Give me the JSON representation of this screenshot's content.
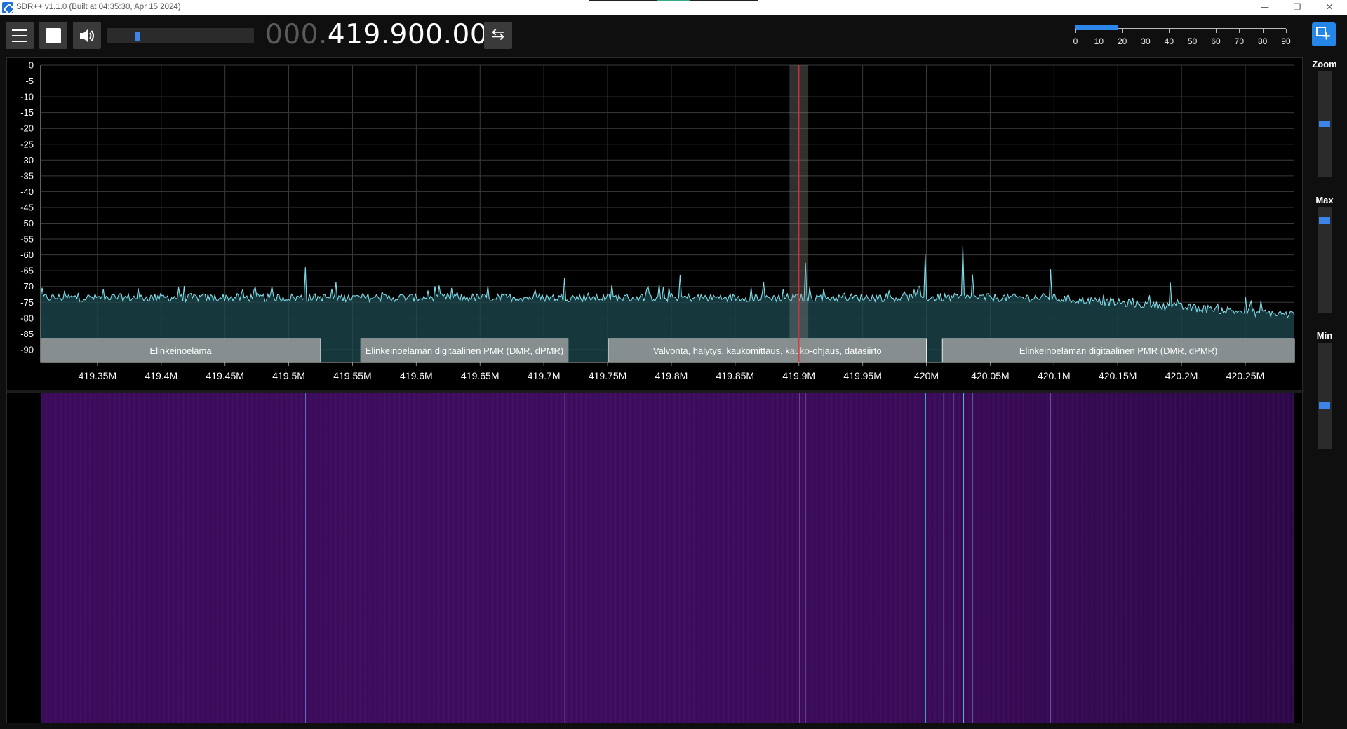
{
  "window": {
    "title": "SDR++ v1.1.0 (Built at 04:35:30, Apr 15 2024)",
    "minimize_icon": "minimize-icon",
    "restore_icon": "restore-icon",
    "close_icon": "close-icon"
  },
  "toolbar": {
    "menu_icon": "hamburger-menu-icon",
    "play_state": "stop",
    "volume_icon": "speaker-icon",
    "volume_level": 0.2,
    "frequency_dim": "000.",
    "frequency_main": "419.900.000",
    "tuning_mode_icon": "swap-arrows-icon",
    "tuning_mode_glyph": "⇆",
    "snr_meter": {
      "labels": [
        "0",
        "10",
        "20",
        "30",
        "40",
        "50",
        "60",
        "70",
        "80",
        "90"
      ],
      "value": 18
    },
    "logo_icon": "sdrpp-logo-icon"
  },
  "side_controls": {
    "zoom_label": "Zoom",
    "max_label": "Max",
    "min_label": "Min",
    "zoom_level": 0.5,
    "max_level": 0.1,
    "min_level": 0.6
  },
  "spectrum": {
    "db_labels": [
      "0",
      "-5",
      "-10",
      "-15",
      "-20",
      "-25",
      "-30",
      "-35",
      "-40",
      "-45",
      "-50",
      "-55",
      "-60",
      "-65",
      "-70",
      "-75",
      "-80",
      "-85",
      "-90"
    ],
    "freq_labels": [
      "419.35M",
      "419.4M",
      "419.45M",
      "419.5M",
      "419.55M",
      "419.6M",
      "419.65M",
      "419.7M",
      "419.75M",
      "419.8M",
      "419.85M",
      "419.9M",
      "419.95M",
      "420M",
      "420.05M",
      "420.1M",
      "420.15M",
      "420.2M",
      "420.25M"
    ],
    "view_start_mhz": 419.3055,
    "view_end_mhz": 420.2885,
    "tuned_mhz": 419.9,
    "vfo_bandwidth_mhz": 0.0125,
    "noise_floor_db": -73,
    "peaks": [
      {
        "mhz": 419.513,
        "db": -64
      },
      {
        "mhz": 419.905,
        "db": -63
      },
      {
        "mhz": 419.999,
        "db": -60
      },
      {
        "mhz": 420.029,
        "db": -59
      },
      {
        "mhz": 420.036,
        "db": -67
      },
      {
        "mhz": 420.097,
        "db": -66
      },
      {
        "mhz": 419.807,
        "db": -67
      },
      {
        "mhz": 419.716,
        "db": -68
      },
      {
        "mhz": 420.191,
        "db": -70
      }
    ],
    "bands": [
      {
        "label": "Elinkeinoelämä",
        "start_mhz": 419.3055,
        "end_mhz": 419.525
      },
      {
        "label": "Elinkeinoelämän digitaalinen PMR (DMR, dPMR)",
        "start_mhz": 419.5565,
        "end_mhz": 419.719
      },
      {
        "label": "Valvonta, hälytys, kaukomittaus, kauko-ohjaus, datasiirto",
        "start_mhz": 419.7505,
        "end_mhz": 420.0
      },
      {
        "label": "Elinkeinoelämän digitaalinen PMR (DMR, dPMR)",
        "start_mhz": 420.0125,
        "end_mhz": 420.2885
      }
    ]
  }
}
